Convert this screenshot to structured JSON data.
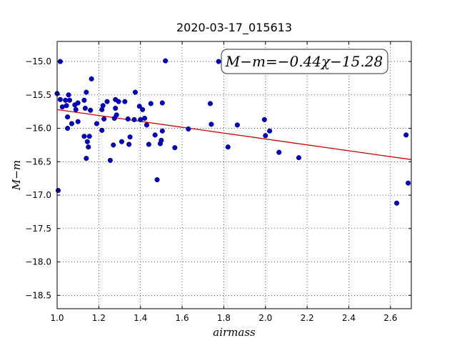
{
  "chart_data": {
    "type": "scatter",
    "title": "2020-03-17_015613",
    "xlabel": "airmass",
    "ylabel": "M−m",
    "xlim": [
      1.0,
      2.7
    ],
    "ylim": [
      -18.7,
      -14.7
    ],
    "y_inverted": true,
    "grid": true,
    "grid_style": "dotted",
    "xticks": [
      1.0,
      1.2,
      1.4,
      1.6,
      1.8,
      2.0,
      2.2,
      2.4,
      2.6
    ],
    "xtick_labels": [
      "1.0",
      "1.2",
      "1.4",
      "1.6",
      "1.8",
      "2.0",
      "2.2",
      "2.4",
      "2.6"
    ],
    "yticks": [
      -15.0,
      -15.5,
      -16.0,
      -16.5,
      -17.0,
      -17.5,
      -18.0,
      -18.5
    ],
    "ytick_labels": [
      "−15.0",
      "−15.5",
      "−16.0",
      "−16.5",
      "−17.0",
      "−17.5",
      "−18.0",
      "−18.5"
    ],
    "annotation": {
      "text": "M−m=−0.44χ−15.28",
      "position": "top-right"
    },
    "fit_line": {
      "slope": -0.44,
      "intercept": -15.28,
      "color": "#cc0000"
    },
    "marker_color": "#0000cc",
    "points": [
      [
        1.0,
        -15.48
      ],
      [
        1.005,
        -16.93
      ],
      [
        1.015,
        -15.0
      ],
      [
        1.015,
        -15.57
      ],
      [
        1.025,
        -15.68
      ],
      [
        1.04,
        -15.58
      ],
      [
        1.045,
        -15.66
      ],
      [
        1.05,
        -16.0
      ],
      [
        1.05,
        -15.83
      ],
      [
        1.055,
        -15.5
      ],
      [
        1.06,
        -15.58
      ],
      [
        1.07,
        -15.93
      ],
      [
        1.085,
        -15.65
      ],
      [
        1.09,
        -15.72
      ],
      [
        1.1,
        -15.62
      ],
      [
        1.1,
        -15.9
      ],
      [
        1.13,
        -16.12
      ],
      [
        1.13,
        -15.58
      ],
      [
        1.135,
        -15.7
      ],
      [
        1.14,
        -15.46
      ],
      [
        1.14,
        -16.45
      ],
      [
        1.145,
        -16.2
      ],
      [
        1.15,
        -16.28
      ],
      [
        1.155,
        -16.12
      ],
      [
        1.16,
        -15.73
      ],
      [
        1.165,
        -15.26
      ],
      [
        1.19,
        -15.93
      ],
      [
        1.215,
        -15.72
      ],
      [
        1.215,
        -16.03
      ],
      [
        1.22,
        -15.66
      ],
      [
        1.225,
        -15.86
      ],
      [
        1.24,
        -15.6
      ],
      [
        1.255,
        -16.48
      ],
      [
        1.27,
        -16.25
      ],
      [
        1.275,
        -15.85
      ],
      [
        1.28,
        -15.57
      ],
      [
        1.28,
        -15.7
      ],
      [
        1.285,
        -15.8
      ],
      [
        1.295,
        -15.6
      ],
      [
        1.31,
        -16.2
      ],
      [
        1.325,
        -15.6
      ],
      [
        1.34,
        -15.86
      ],
      [
        1.345,
        -16.24
      ],
      [
        1.35,
        -16.13
      ],
      [
        1.37,
        -15.87
      ],
      [
        1.375,
        -15.46
      ],
      [
        1.395,
        -15.67
      ],
      [
        1.4,
        -15.87
      ],
      [
        1.41,
        -15.72
      ],
      [
        1.42,
        -15.85
      ],
      [
        1.43,
        -15.95
      ],
      [
        1.44,
        -16.24
      ],
      [
        1.45,
        -15.63
      ],
      [
        1.47,
        -16.1
      ],
      [
        1.48,
        -16.77
      ],
      [
        1.495,
        -16.23
      ],
      [
        1.5,
        -16.18
      ],
      [
        1.505,
        -16.04
      ],
      [
        1.505,
        -15.62
      ],
      [
        1.52,
        -14.99
      ],
      [
        1.565,
        -16.29
      ],
      [
        1.63,
        -16.01
      ],
      [
        1.735,
        -15.63
      ],
      [
        1.74,
        -15.94
      ],
      [
        1.775,
        -15.0
      ],
      [
        1.82,
        -16.28
      ],
      [
        1.865,
        -15.95
      ],
      [
        1.995,
        -15.87
      ],
      [
        2.0,
        -16.11
      ],
      [
        2.02,
        -16.04
      ],
      [
        2.065,
        -16.36
      ],
      [
        2.16,
        -16.44
      ],
      [
        2.63,
        -17.12
      ],
      [
        2.675,
        -16.1
      ],
      [
        2.685,
        -16.82
      ]
    ]
  }
}
